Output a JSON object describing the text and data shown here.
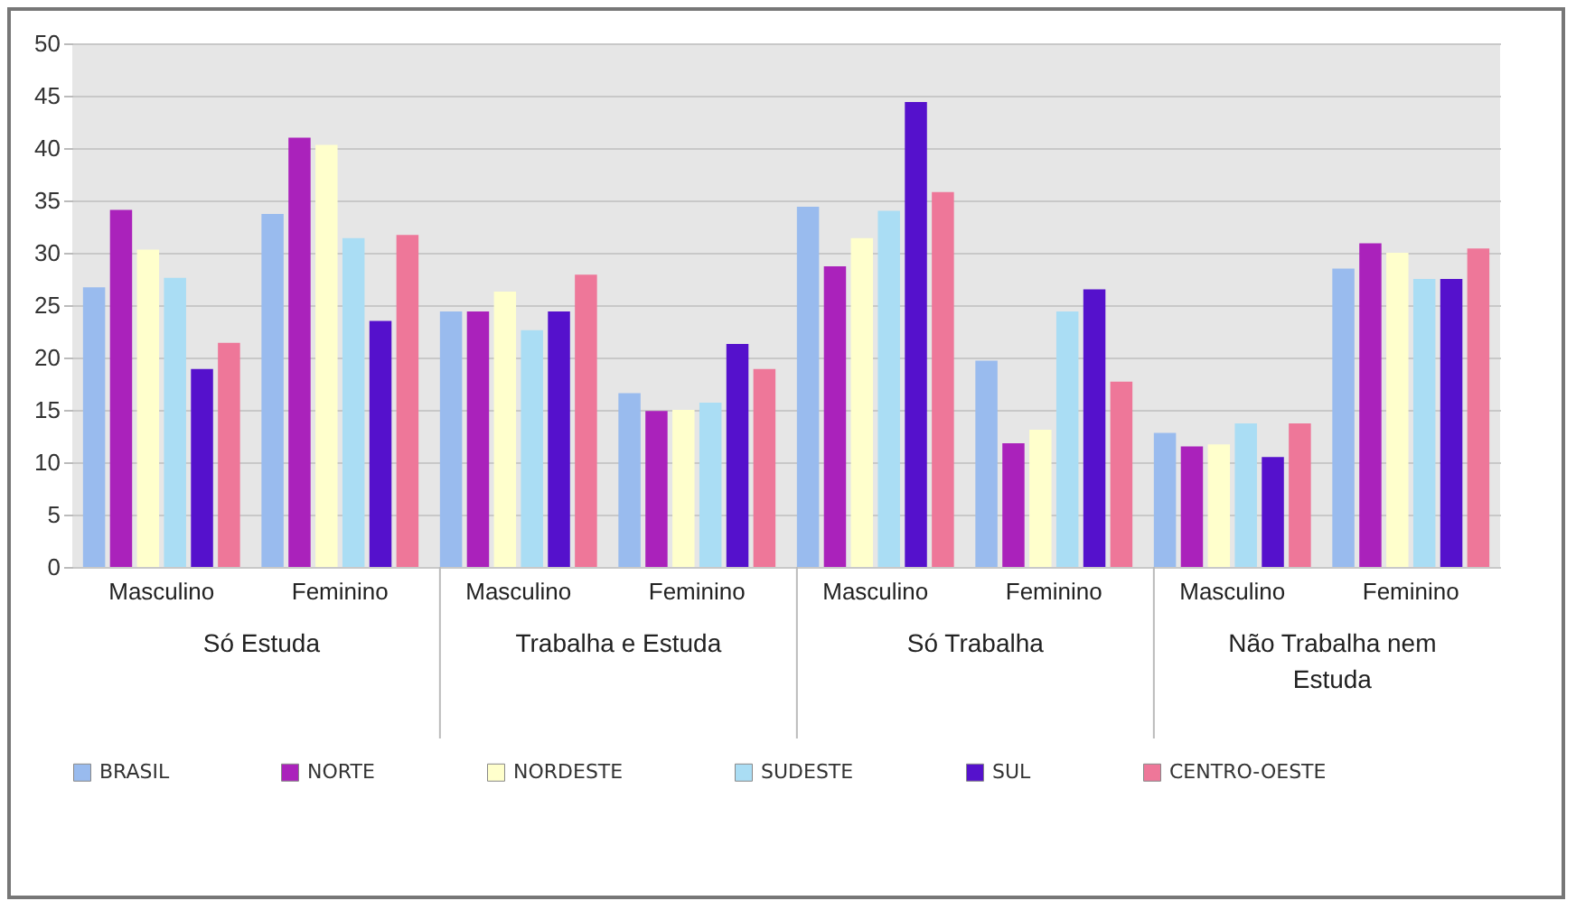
{
  "chart_data": {
    "type": "bar",
    "categories": [
      "Masculino",
      "Feminino",
      "Masculino",
      "Feminino",
      "Masculino",
      "Feminino",
      "Masculino",
      "Feminino"
    ],
    "series": [
      {
        "name": "BRASIL",
        "color": "#99bbee",
        "values": [
          26.7,
          33.7,
          24.4,
          16.6,
          34.4,
          19.7,
          12.8,
          28.5
        ]
      },
      {
        "name": "NORTE",
        "color": "#aa22bb",
        "values": [
          34.1,
          41,
          24.4,
          14.9,
          28.7,
          11.8,
          11.5,
          30.9
        ]
      },
      {
        "name": "NORDESTE",
        "color": "#ffffcc",
        "values": [
          30.3,
          40.3,
          26.3,
          15,
          31.4,
          13.1,
          11.7,
          30
        ]
      },
      {
        "name": "SUDESTE",
        "color": "#aaddf4",
        "values": [
          27.6,
          31.4,
          22.6,
          15.7,
          34,
          24.4,
          13.7,
          27.5
        ]
      },
      {
        "name": "SUL",
        "color": "#5511cc",
        "values": [
          18.9,
          23.5,
          24.4,
          21.3,
          44.4,
          26.5,
          10.5,
          27.5
        ]
      },
      {
        "name": "CENTRO-OESTE",
        "color": "#ee7799",
        "values": [
          21.4,
          31.7,
          27.9,
          18.9,
          35.8,
          17.7,
          13.7,
          30.4
        ]
      }
    ],
    "ylim": [
      0,
      50
    ],
    "yticks": [
      0,
      5,
      10,
      15,
      20,
      25,
      30,
      35,
      40,
      45,
      50
    ],
    "grid": "y",
    "legend": "bottom",
    "annotations": [
      "Só Estuda",
      "Trabalha e Estuda",
      "Só Trabalha",
      "Não Trabalha nem Estuda"
    ]
  }
}
